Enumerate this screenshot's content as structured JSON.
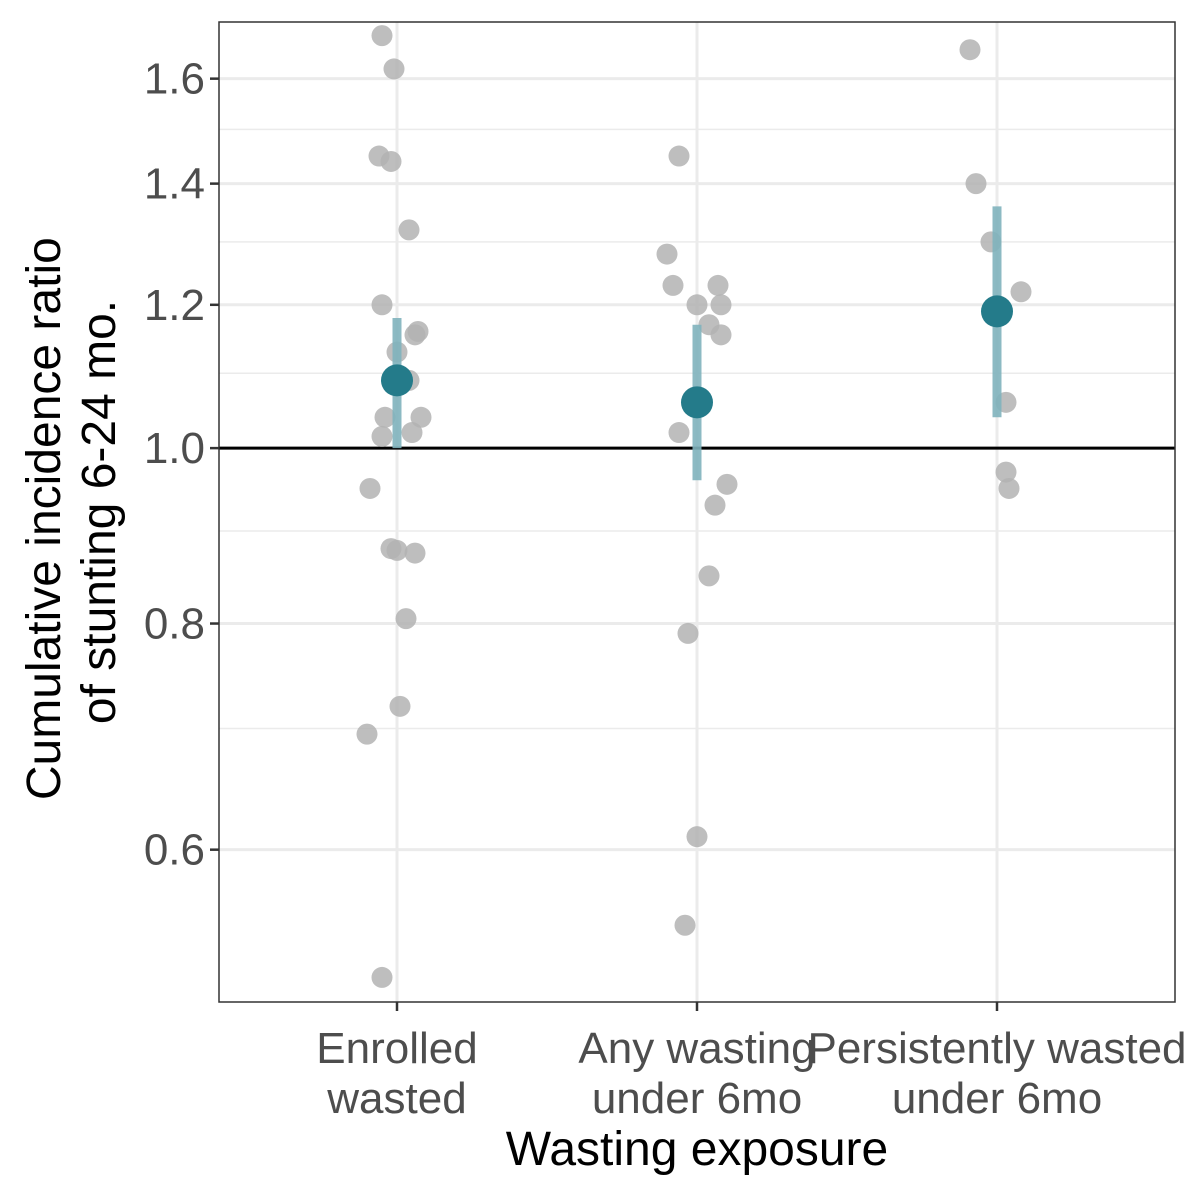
{
  "chart_data": {
    "type": "scatter",
    "title": "",
    "xlabel": "Wasting exposure",
    "ylabel_lines": [
      "Cumulative incidence ratio",
      "of stunting 6-24 mo."
    ],
    "y_scale": "log",
    "ylim": [
      0.5,
      1.7
    ],
    "y_ticks": [
      {
        "value": 0.6,
        "label": "0.6"
      },
      {
        "value": 0.8,
        "label": "0.8"
      },
      {
        "value": 1.0,
        "label": "1.0"
      },
      {
        "value": 1.2,
        "label": "1.2"
      },
      {
        "value": 1.4,
        "label": "1.4"
      },
      {
        "value": 1.6,
        "label": "1.6"
      }
    ],
    "y_minor_ticks": [
      0.7,
      0.9,
      1.1,
      1.3,
      1.5
    ],
    "reference_line": 1.0,
    "grid": true,
    "colors": {
      "pooled": "#247b8a",
      "ci": "#7fb3bd",
      "study": "#b3b3b3",
      "grid": "#ebebeb",
      "reference": "#000000"
    },
    "categories": [
      {
        "label_lines": [
          "Enrolled",
          "wasted"
        ],
        "pooled": {
          "estimate": 1.09,
          "ci_lower": 1.0,
          "ci_upper": 1.18
        },
        "studies": [
          {
            "jitter": -0.05,
            "value": 1.69
          },
          {
            "jitter": -0.01,
            "value": 1.62
          },
          {
            "jitter": -0.06,
            "value": 1.45
          },
          {
            "jitter": -0.02,
            "value": 1.44
          },
          {
            "jitter": 0.04,
            "value": 1.32
          },
          {
            "jitter": -0.05,
            "value": 1.2
          },
          {
            "jitter": 0.07,
            "value": 1.16
          },
          {
            "jitter": 0.06,
            "value": 1.155
          },
          {
            "jitter": 0.0,
            "value": 1.13
          },
          {
            "jitter": 0.04,
            "value": 1.09
          },
          {
            "jitter": -0.04,
            "value": 1.04
          },
          {
            "jitter": 0.08,
            "value": 1.04
          },
          {
            "jitter": -0.05,
            "value": 1.015
          },
          {
            "jitter": 0.05,
            "value": 1.02
          },
          {
            "jitter": -0.09,
            "value": 0.95
          },
          {
            "jitter": -0.02,
            "value": 0.88
          },
          {
            "jitter": 0.0,
            "value": 0.878
          },
          {
            "jitter": 0.06,
            "value": 0.875
          },
          {
            "jitter": 0.03,
            "value": 0.805
          },
          {
            "jitter": 0.01,
            "value": 0.72
          },
          {
            "jitter": -0.1,
            "value": 0.695
          },
          {
            "jitter": -0.05,
            "value": 0.51
          }
        ]
      },
      {
        "label_lines": [
          "Any wasting",
          "under 6mo"
        ],
        "pooled": {
          "estimate": 1.06,
          "ci_lower": 0.96,
          "ci_upper": 1.17
        },
        "studies": [
          {
            "jitter": -0.06,
            "value": 1.45
          },
          {
            "jitter": -0.1,
            "value": 1.28
          },
          {
            "jitter": -0.08,
            "value": 1.23
          },
          {
            "jitter": 0.07,
            "value": 1.23
          },
          {
            "jitter": 0.0,
            "value": 1.2
          },
          {
            "jitter": 0.08,
            "value": 1.2
          },
          {
            "jitter": 0.04,
            "value": 1.17
          },
          {
            "jitter": 0.08,
            "value": 1.155
          },
          {
            "jitter": -0.06,
            "value": 1.02
          },
          {
            "jitter": 0.1,
            "value": 0.955
          },
          {
            "jitter": 0.06,
            "value": 0.93
          },
          {
            "jitter": 0.04,
            "value": 0.85
          },
          {
            "jitter": -0.03,
            "value": 0.79
          },
          {
            "jitter": 0.0,
            "value": 0.61
          },
          {
            "jitter": -0.04,
            "value": 0.545
          }
        ]
      },
      {
        "label_lines": [
          "Persistently wasted",
          "under 6mo"
        ],
        "pooled": {
          "estimate": 1.19,
          "ci_lower": 1.04,
          "ci_upper": 1.36
        },
        "studies": [
          {
            "jitter": -0.09,
            "value": 1.66
          },
          {
            "jitter": -0.07,
            "value": 1.4
          },
          {
            "jitter": -0.02,
            "value": 1.3
          },
          {
            "jitter": 0.08,
            "value": 1.22
          },
          {
            "jitter": 0.03,
            "value": 1.06
          },
          {
            "jitter": 0.03,
            "value": 0.97
          },
          {
            "jitter": 0.04,
            "value": 0.95
          }
        ]
      }
    ]
  }
}
